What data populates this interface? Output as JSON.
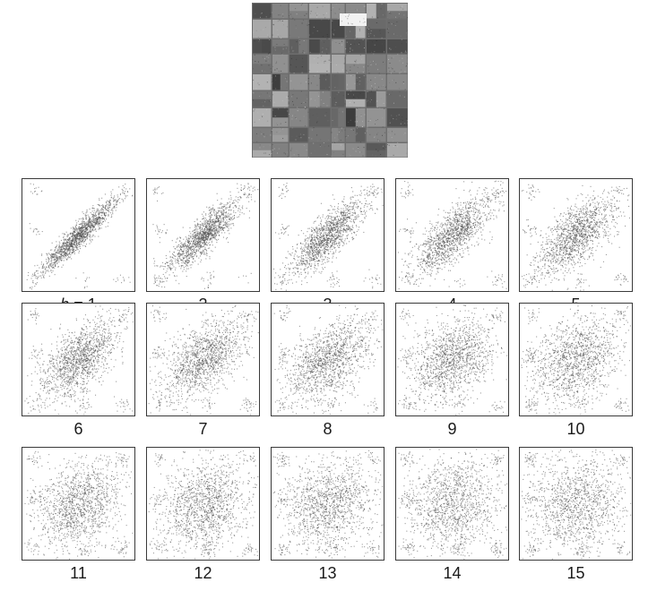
{
  "figure": {
    "image": "grayscale aerial image of agricultural field patches",
    "lag_prefix": "h",
    "lag_equals": " = ",
    "panels": [
      {
        "label": "1",
        "h": 1
      },
      {
        "label": "2",
        "h": 2
      },
      {
        "label": "3",
        "h": 3
      },
      {
        "label": "4",
        "h": 4
      },
      {
        "label": "5",
        "h": 5
      },
      {
        "label": "6",
        "h": 6
      },
      {
        "label": "7",
        "h": 7
      },
      {
        "label": "8",
        "h": 8
      },
      {
        "label": "9",
        "h": 9
      },
      {
        "label": "10",
        "h": 10
      },
      {
        "label": "11",
        "h": 11
      },
      {
        "label": "12",
        "h": 12
      },
      {
        "label": "13",
        "h": 13
      },
      {
        "label": "14",
        "h": 14
      },
      {
        "label": "15",
        "h": 15
      }
    ]
  },
  "colors": {
    "point": "#4a4a4a",
    "frame": "#3a3a3a",
    "background": "#ffffff"
  }
}
